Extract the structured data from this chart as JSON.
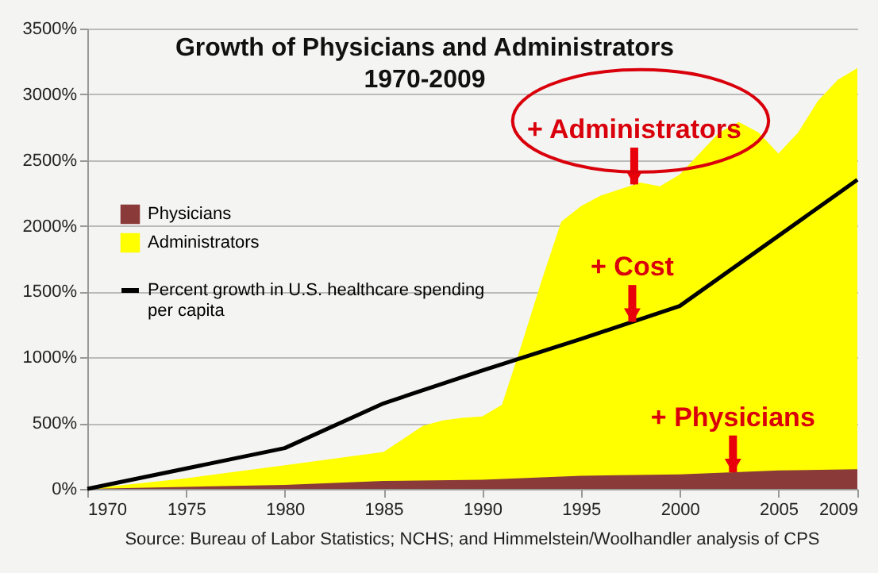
{
  "chart_data": {
    "type": "area",
    "title": "Growth of Physicians and Administrators\n1970-2009",
    "xlim": [
      1970,
      2009
    ],
    "xticks": [
      1970,
      1975,
      1980,
      1985,
      1990,
      1995,
      2000,
      2005,
      2009
    ],
    "ylim": [
      0,
      3500
    ],
    "yticks": [
      {
        "value": 0,
        "label": "0%"
      },
      {
        "value": 500,
        "label": "500%"
      },
      {
        "value": 1000,
        "label": "1000%"
      },
      {
        "value": 1500,
        "label": "1500%"
      },
      {
        "value": 2000,
        "label": "2000%"
      },
      {
        "value": 2500,
        "label": "2500%"
      },
      {
        "value": 3000,
        "label": "3000%"
      },
      {
        "value": 3500,
        "label": "3500%"
      }
    ],
    "grid": "y",
    "legend": "left",
    "series": [
      {
        "name": "Administrators",
        "color": "#ffff00",
        "x": [
          1970,
          1975,
          1980,
          1985,
          1987,
          1988,
          1989,
          1990,
          1991,
          1992,
          1993,
          1994,
          1995,
          1996,
          1998,
          1999,
          2000,
          2001,
          2002,
          2003,
          2004,
          2005,
          2006,
          2007,
          2008,
          2009
        ],
        "values": [
          0,
          80,
          180,
          280,
          480,
          520,
          540,
          550,
          640,
          1100,
          1580,
          2030,
          2150,
          2230,
          2330,
          2300,
          2390,
          2550,
          2710,
          2790,
          2710,
          2550,
          2710,
          2950,
          3110,
          3200
        ]
      },
      {
        "name": "Physicians",
        "color": "#8b3a3a",
        "x": [
          1970,
          1980,
          1985,
          1990,
          1995,
          2000,
          2005,
          2009
        ],
        "values": [
          0,
          30,
          60,
          70,
          100,
          110,
          140,
          150
        ]
      },
      {
        "name": "Percent growth in U.S. healthcare spending per capita",
        "color": "#000000",
        "type": "line",
        "x": [
          1970,
          1980,
          1985,
          1990,
          1995,
          2000,
          2009
        ],
        "values": [
          0,
          310,
          650,
          900,
          1140,
          1390,
          2350
        ]
      }
    ],
    "annotations": [
      {
        "text": "+ Administrators",
        "x": 1997.7,
        "y": 2315
      },
      {
        "text": "+ Cost",
        "x": 1997.6,
        "y": 1270
      },
      {
        "text": "+ Physicians",
        "x": 2002.7,
        "y": 126
      },
      "Source: Bureau of Labor Statistics; NCHS; and Himmelstein/Woolhandler analysis of CPS"
    ]
  }
}
